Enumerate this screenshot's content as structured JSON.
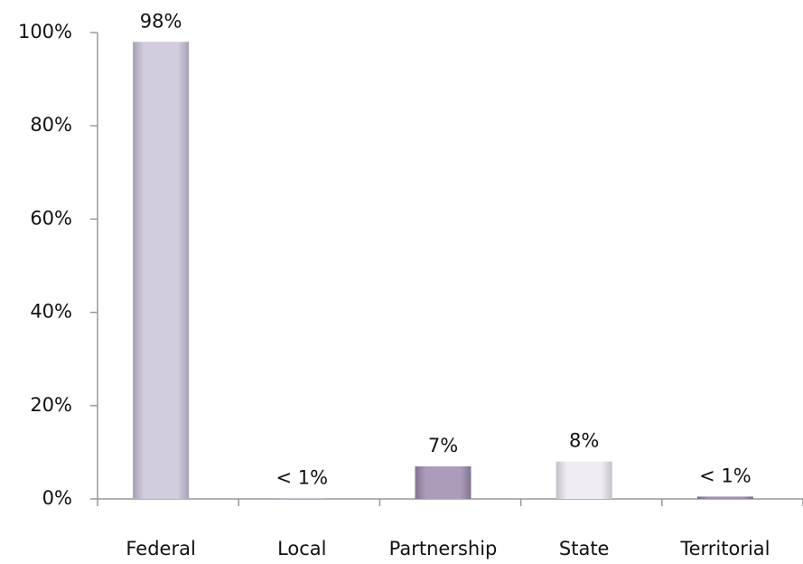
{
  "chart_data": {
    "type": "bar",
    "categories": [
      "Federal",
      "Local",
      "Partnership",
      "State",
      "Territorial"
    ],
    "values": [
      98,
      0.1,
      7,
      8,
      0.5
    ],
    "value_labels": [
      "98%",
      "< 1%",
      "7%",
      "8%",
      "< 1%"
    ],
    "colors": [
      "#cbc2d8",
      "#b3a6c4",
      "#9e8bb0",
      "#ede9f1",
      "#8f7ea3"
    ],
    "ylim": [
      0,
      100
    ],
    "yticks": [
      {
        "value": 0,
        "label": "0%"
      },
      {
        "value": 20,
        "label": "20%"
      },
      {
        "value": 40,
        "label": "40%"
      },
      {
        "value": 60,
        "label": "60%"
      },
      {
        "value": 80,
        "label": "80%"
      },
      {
        "value": 100,
        "label": "100%"
      }
    ],
    "grid": false
  }
}
